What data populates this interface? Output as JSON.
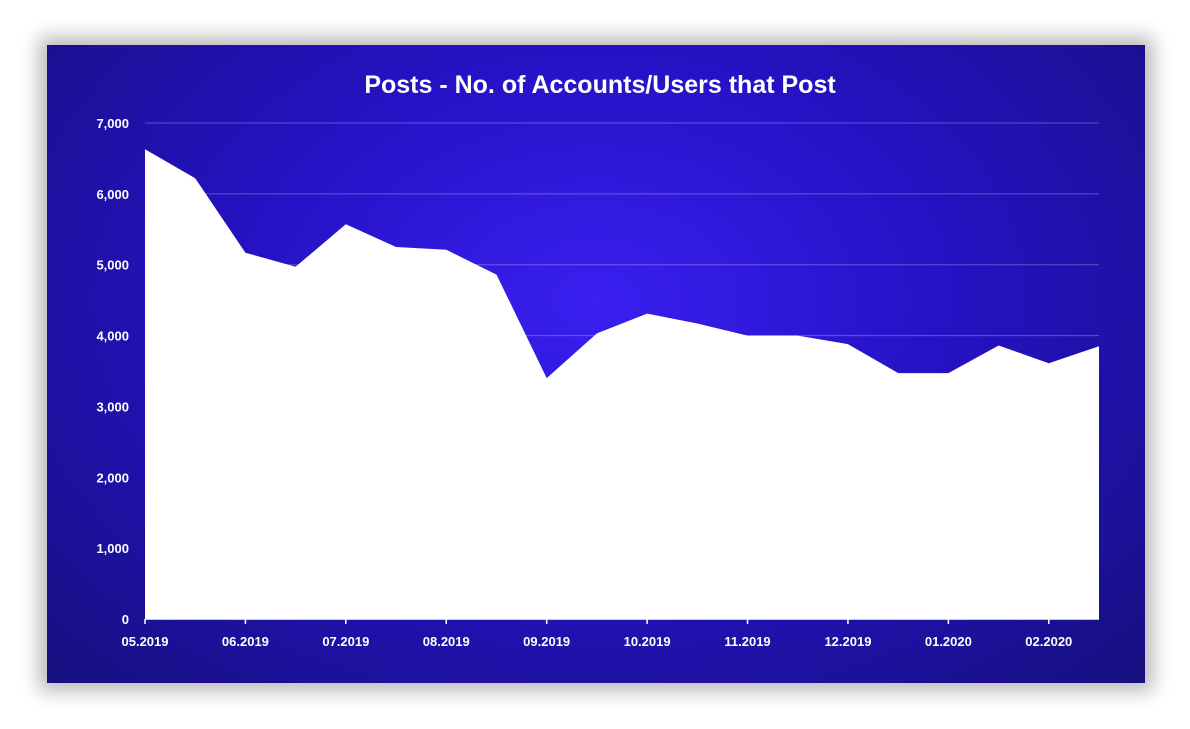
{
  "chart_data": {
    "type": "area",
    "title": "Posts - No. of Accounts/Users that Post",
    "xlabel": "",
    "ylabel": "",
    "ylim": [
      0,
      7000
    ],
    "y_ticks": [
      "0",
      "1,000",
      "2,000",
      "3,000",
      "4,000",
      "5,000",
      "6,000",
      "7,000"
    ],
    "x_tick_labels": [
      "05.2019",
      "06.2019",
      "07.2019",
      "08.2019",
      "09.2019",
      "10.2019",
      "11.2019",
      "12.2019",
      "01.2020",
      "02.2020"
    ],
    "grid": true,
    "legend": "none",
    "fill_color": "#ffffff",
    "background_color": "#2a17d0",
    "series": [
      {
        "values": [
          6630,
          6220,
          5170,
          4970,
          5570,
          5250,
          5210,
          4860,
          3400,
          4030,
          4310,
          4170,
          4000,
          4000,
          3880,
          3470,
          3470,
          3860,
          3610,
          3850
        ]
      }
    ]
  }
}
